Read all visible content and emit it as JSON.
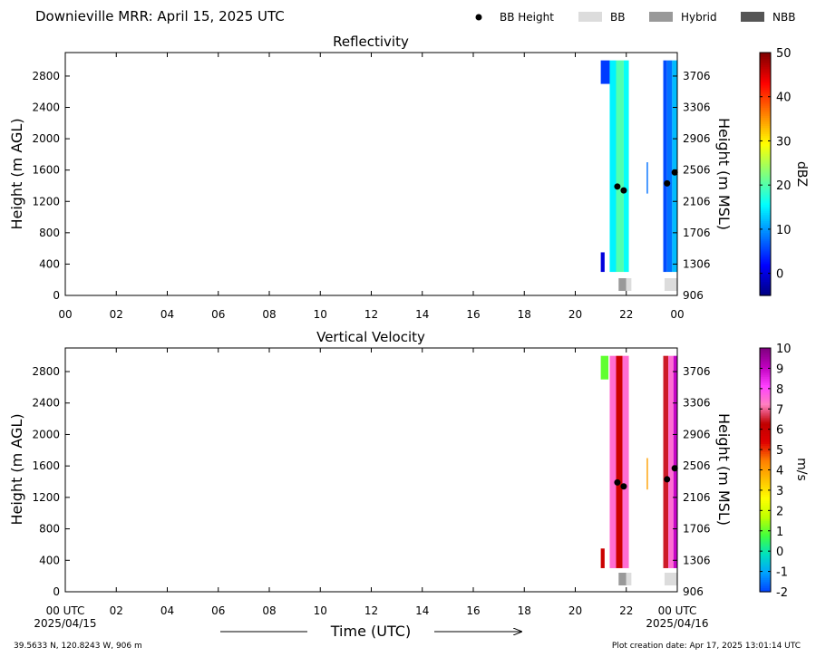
{
  "header": {
    "title": "Downieville MRR:  April 15, 2025 UTC",
    "legend": [
      {
        "label": "BB Height",
        "marker": "dot",
        "color": "#000000"
      },
      {
        "label": "BB",
        "marker": "box",
        "color": "#dcdcdc"
      },
      {
        "label": "Hybrid",
        "marker": "box",
        "color": "#999999"
      },
      {
        "label": "NBB",
        "marker": "box",
        "color": "#555555"
      }
    ]
  },
  "footer": {
    "location": "39.5633 N, 120.8243 W, 906 m",
    "creation_date": "Plot creation date: Apr 17, 2025 13:01:14 UTC",
    "xlabel": "Time (UTC)",
    "start_date": "2025/04/15",
    "end_date": "2025/04/16"
  },
  "chart_data": [
    {
      "type": "heatmap",
      "title": "Reflectivity",
      "ylabel": "Height (m AGL)",
      "ylabel_right": "Height (m MSL)",
      "colorbar_label": "dBZ",
      "colorbar_ticks": [
        "0",
        "10",
        "20",
        "30",
        "40",
        "50"
      ],
      "colorbar_range": [
        -5,
        50
      ],
      "colorbar_colors": [
        "#00007f",
        "#0000ff",
        "#007fff",
        "#00ffff",
        "#7fff7f",
        "#ffff00",
        "#ff7f00",
        "#ff0000",
        "#7f0000"
      ],
      "xlim": [
        0,
        24
      ],
      "x_ticks": [
        "00",
        "02",
        "04",
        "06",
        "08",
        "10",
        "12",
        "14",
        "16",
        "18",
        "20",
        "22",
        "00"
      ],
      "ylim": [
        0,
        3100
      ],
      "y_ticks": [
        "0",
        "400",
        "800",
        "1200",
        "1600",
        "2000",
        "2400",
        "2800"
      ],
      "y_ticks_right": [
        "906",
        "1306",
        "1706",
        "2106",
        "2506",
        "2906",
        "3306",
        "3706"
      ],
      "data_blocks": [
        {
          "x": [
            21.0,
            21.35
          ],
          "y": [
            2700,
            3000
          ],
          "value": 5
        },
        {
          "x": [
            21.0,
            21.15
          ],
          "y": [
            300,
            550
          ],
          "value": 0
        },
        {
          "x": [
            21.35,
            21.6
          ],
          "y": [
            300,
            3000
          ],
          "value": 15
        },
        {
          "x": [
            21.6,
            21.9
          ],
          "y": [
            300,
            3000
          ],
          "value": 20
        },
        {
          "x": [
            21.9,
            22.1
          ],
          "y": [
            300,
            3000
          ],
          "value": 16
        },
        {
          "x": [
            22.8,
            22.85
          ],
          "y": [
            1300,
            1700
          ],
          "value": 8
        },
        {
          "x": [
            23.45,
            23.6
          ],
          "y": [
            300,
            3000
          ],
          "value": 6
        },
        {
          "x": [
            23.6,
            23.8
          ],
          "y": [
            300,
            3000
          ],
          "value": 8
        },
        {
          "x": [
            23.8,
            24.0
          ],
          "y": [
            300,
            3000
          ],
          "value": 12
        }
      ],
      "bb_height": [
        {
          "x": 21.65,
          "y": 1390
        },
        {
          "x": 21.9,
          "y": 1340
        },
        {
          "x": 23.6,
          "y": 1430
        },
        {
          "x": 23.9,
          "y": 1570
        }
      ],
      "bb_types": [
        {
          "x": [
            21.7,
            22.0
          ],
          "type": "Hybrid"
        },
        {
          "x": [
            22.0,
            22.2
          ],
          "type": "BB"
        },
        {
          "x": [
            23.5,
            24.0
          ],
          "type": "BB"
        }
      ]
    },
    {
      "type": "heatmap",
      "title": "Vertical Velocity",
      "ylabel": "Height (m AGL)",
      "ylabel_right": "Height (m MSL)",
      "colorbar_label": "m/s",
      "colorbar_ticks": [
        "-2",
        "-1",
        "0",
        "1",
        "2",
        "3",
        "4",
        "5",
        "6",
        "7",
        "8",
        "9",
        "10"
      ],
      "colorbar_range": [
        -2,
        10
      ],
      "colorbar_colors": [
        "#0040ff",
        "#00a0ff",
        "#00e0c0",
        "#40ff40",
        "#c0ff00",
        "#ffff00",
        "#ffc000",
        "#ff8000",
        "#e00000",
        "#c00000",
        "#ff80c0",
        "#ff40ff",
        "#c000c0",
        "#800080"
      ],
      "xlim": [
        0,
        24
      ],
      "x_ticks": [
        "00 UTC",
        "02",
        "04",
        "06",
        "08",
        "10",
        "12",
        "14",
        "16",
        "18",
        "20",
        "22",
        "00 UTC"
      ],
      "ylim": [
        0,
        3100
      ],
      "y_ticks": [
        "0",
        "400",
        "800",
        "1200",
        "1600",
        "2000",
        "2400",
        "2800"
      ],
      "y_ticks_right": [
        "906",
        "1306",
        "1706",
        "2106",
        "2506",
        "2906",
        "3306",
        "3706"
      ],
      "data_blocks": [
        {
          "x": [
            21.0,
            21.3
          ],
          "y": [
            2700,
            3000
          ],
          "value": 1
        },
        {
          "x": [
            21.0,
            21.15
          ],
          "y": [
            300,
            550
          ],
          "value": 6
        },
        {
          "x": [
            21.35,
            21.6
          ],
          "y": [
            300,
            3000
          ],
          "value": 7.5
        },
        {
          "x": [
            21.6,
            21.85
          ],
          "y": [
            300,
            3000
          ],
          "value": 6
        },
        {
          "x": [
            21.85,
            22.1
          ],
          "y": [
            300,
            3000
          ],
          "value": 7.5
        },
        {
          "x": [
            22.8,
            22.85
          ],
          "y": [
            1300,
            1700
          ],
          "value": 4
        },
        {
          "x": [
            23.45,
            23.65
          ],
          "y": [
            300,
            3000
          ],
          "value": 6.5
        },
        {
          "x": [
            23.65,
            23.85
          ],
          "y": [
            300,
            3000
          ],
          "value": 7.5
        },
        {
          "x": [
            23.85,
            24.0
          ],
          "y": [
            300,
            3000
          ],
          "value": 9
        }
      ],
      "bb_height": [
        {
          "x": 21.65,
          "y": 1390
        },
        {
          "x": 21.9,
          "y": 1340
        },
        {
          "x": 23.6,
          "y": 1430
        },
        {
          "x": 23.9,
          "y": 1570
        }
      ],
      "bb_types": [
        {
          "x": [
            21.7,
            22.0
          ],
          "type": "Hybrid"
        },
        {
          "x": [
            22.0,
            22.2
          ],
          "type": "BB"
        },
        {
          "x": [
            23.5,
            24.0
          ],
          "type": "BB"
        }
      ]
    }
  ]
}
